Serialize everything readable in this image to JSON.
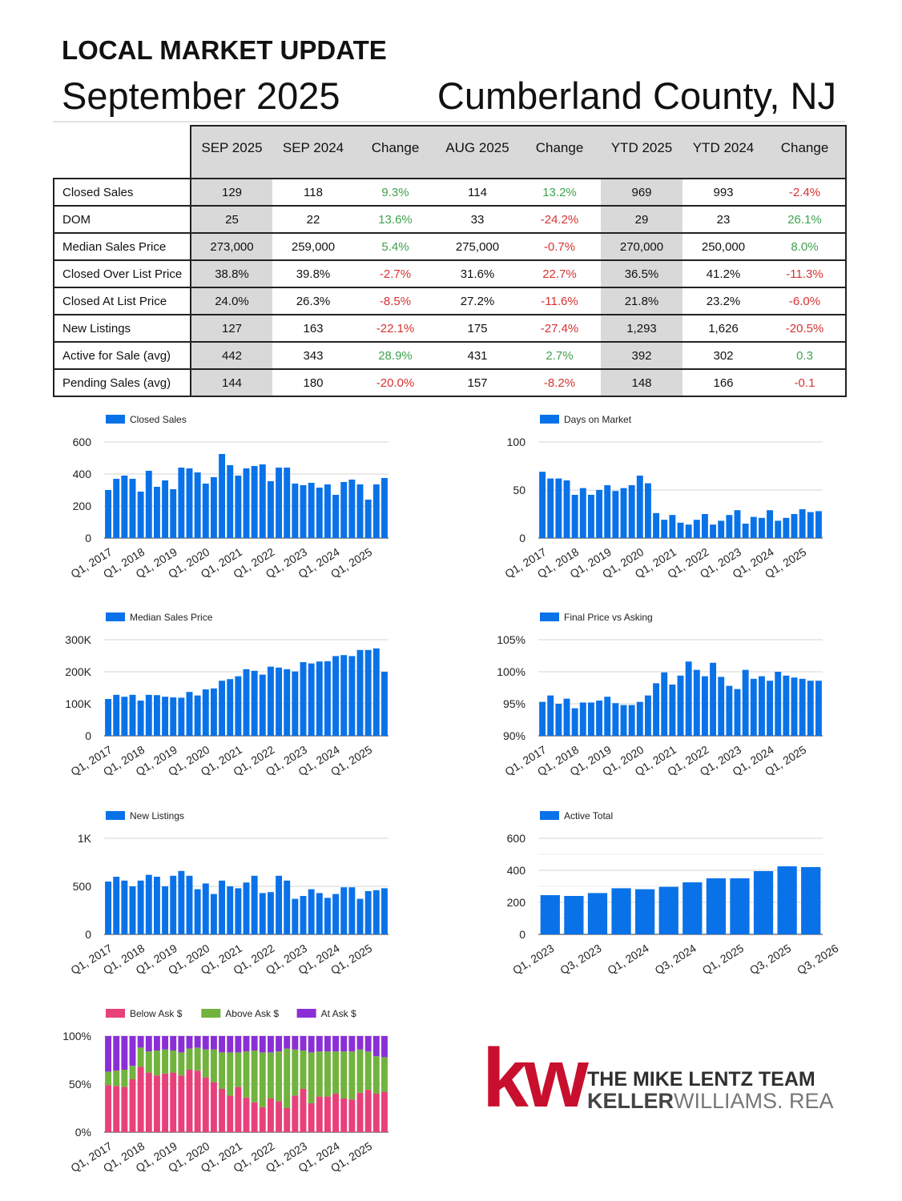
{
  "header": {
    "title": "LOCAL MARKET UPDATE",
    "month": "September 2025",
    "county": "Cumberland County, NJ"
  },
  "table": {
    "columns": [
      "SEP 2025",
      "SEP 2024",
      "Change",
      "AUG 2025",
      "Change",
      "YTD 2025",
      "YTD 2024",
      "Change"
    ],
    "rows": [
      {
        "label": "Closed Sales",
        "values": [
          "129",
          "118",
          "9.3%",
          "114",
          "13.2%",
          "969",
          "993",
          "-2.4%"
        ],
        "change_colors": [
          "pos",
          "pos",
          "neg"
        ]
      },
      {
        "label": "DOM",
        "values": [
          "25",
          "22",
          "13.6%",
          "33",
          "-24.2%",
          "29",
          "23",
          "26.1%"
        ],
        "change_colors": [
          "pos",
          "neg",
          "pos"
        ]
      },
      {
        "label": "Median Sales Price",
        "values": [
          "273,000",
          "259,000",
          "5.4%",
          "275,000",
          "-0.7%",
          "270,000",
          "250,000",
          "8.0%"
        ],
        "change_colors": [
          "pos",
          "neg",
          "pos"
        ]
      },
      {
        "label": "Closed Over List Price",
        "values": [
          "38.8%",
          "39.8%",
          "-2.7%",
          "31.6%",
          "22.7%",
          "36.5%",
          "41.2%",
          "-11.3%"
        ],
        "change_colors": [
          "neg",
          "neg",
          "neg"
        ]
      },
      {
        "label": "Closed At List Price",
        "values": [
          "24.0%",
          "26.3%",
          "-8.5%",
          "27.2%",
          "-11.6%",
          "21.8%",
          "23.2%",
          "-6.0%"
        ],
        "change_colors": [
          "neg",
          "neg",
          "neg"
        ]
      },
      {
        "label": "New Listings",
        "values": [
          "127",
          "163",
          "-22.1%",
          "175",
          "-27.4%",
          "1,293",
          "1,626",
          "-20.5%"
        ],
        "change_colors": [
          "neg",
          "neg",
          "neg"
        ]
      },
      {
        "label": "Active for Sale (avg)",
        "values": [
          "442",
          "343",
          "28.9%",
          "431",
          "2.7%",
          "392",
          "302",
          "0.3"
        ],
        "change_colors": [
          "pos",
          "pos",
          "pos"
        ]
      },
      {
        "label": "Pending Sales (avg)",
        "values": [
          "144",
          "180",
          "-20.0%",
          "157",
          "-8.2%",
          "148",
          "166",
          "-0.1"
        ],
        "change_colors": [
          "neg",
          "neg",
          "neg"
        ]
      }
    ]
  },
  "colors": {
    "bar": "#0a72e8",
    "below_ask": "#e8407a",
    "above_ask": "#71b33d",
    "at_ask": "#8a2fd6",
    "positive": "#3fa34d",
    "negative": "#d83232",
    "kw_red": "#c8102e"
  },
  "chart_data": [
    {
      "id": "closed-sales",
      "type": "bar",
      "series_names": [
        "Closed Sales"
      ],
      "y_ticks": [
        "0",
        "200",
        "400",
        "600"
      ],
      "ylim": [
        0,
        600
      ],
      "x_tick_labels": [
        "Q1, 2017",
        "Q1, 2018",
        "Q1, 2019",
        "Q1, 2020",
        "Q1, 2021",
        "Q1, 2022",
        "Q1, 2023",
        "Q1, 2024",
        "Q1, 2025"
      ],
      "values": [
        300,
        370,
        390,
        370,
        290,
        420,
        320,
        360,
        305,
        440,
        435,
        410,
        340,
        380,
        525,
        455,
        390,
        435,
        450,
        460,
        355,
        440,
        440,
        340,
        330,
        345,
        315,
        335,
        270,
        350,
        365,
        335,
        240,
        335,
        375
      ]
    },
    {
      "id": "days-on-market",
      "type": "bar",
      "series_names": [
        "Days on Market"
      ],
      "y_ticks": [
        "0",
        "50",
        "100"
      ],
      "ylim": [
        0,
        100
      ],
      "x_tick_labels": [
        "Q1, 2017",
        "Q1, 2018",
        "Q1, 2019",
        "Q1, 2020",
        "Q1, 2021",
        "Q1, 2022",
        "Q1, 2023",
        "Q1, 2024",
        "Q1, 2025"
      ],
      "values": [
        69,
        62,
        62,
        60,
        45,
        52,
        45,
        50,
        55,
        49,
        52,
        55,
        65,
        57,
        26,
        19,
        24,
        16,
        14,
        19,
        25,
        14,
        18,
        24,
        29,
        15,
        22,
        21,
        29,
        18,
        21,
        25,
        30,
        27,
        28
      ]
    },
    {
      "id": "median-sales-price",
      "type": "bar",
      "series_names": [
        "Median Sales Price"
      ],
      "y_ticks": [
        "0",
        "100K",
        "200K",
        "300K"
      ],
      "ylim": [
        0,
        300000
      ],
      "x_tick_labels": [
        "Q1, 2017",
        "Q1, 2018",
        "Q1, 2019",
        "Q1, 2020",
        "Q1, 2021",
        "Q1, 2022",
        "Q1, 2023",
        "Q1, 2024",
        "Q1, 2025"
      ],
      "values": [
        115000,
        128000,
        122000,
        128000,
        110000,
        128000,
        127000,
        122000,
        120000,
        119000,
        137000,
        126000,
        145000,
        148000,
        172000,
        177000,
        186000,
        208000,
        203000,
        191000,
        216000,
        213000,
        208000,
        201000,
        230000,
        226000,
        232000,
        233000,
        249000,
        252000,
        249000,
        268000,
        268000,
        273000,
        200000
      ]
    },
    {
      "id": "final-price-vs-asking",
      "type": "bar",
      "series_names": [
        "Final Price vs Asking"
      ],
      "y_ticks": [
        "90%",
        "95%",
        "100%",
        "105%"
      ],
      "ylim": [
        90,
        105
      ],
      "x_tick_labels": [
        "Q1, 2017",
        "Q1, 2018",
        "Q1, 2019",
        "Q1, 2020",
        "Q1, 2021",
        "Q1, 2022",
        "Q1, 2023",
        "Q1, 2024",
        "Q1, 2025"
      ],
      "values": [
        95.3,
        96.3,
        95.0,
        95.8,
        94.3,
        95.2,
        95.2,
        95.5,
        96.1,
        95.1,
        94.8,
        94.8,
        95.3,
        96.3,
        98.2,
        99.9,
        98.0,
        99.4,
        101.6,
        100.3,
        99.3,
        101.4,
        99.2,
        97.8,
        97.3,
        100.3,
        98.9,
        99.3,
        98.6,
        100.0,
        99.4,
        99.1,
        98.9,
        98.6,
        98.6
      ]
    },
    {
      "id": "new-listings",
      "type": "bar",
      "series_names": [
        "New Listings"
      ],
      "y_ticks": [
        "0",
        "500",
        "1K"
      ],
      "ylim": [
        0,
        1000
      ],
      "x_tick_labels": [
        "Q1, 2017",
        "Q1, 2018",
        "Q1, 2019",
        "Q1, 2020",
        "Q1, 2021",
        "Q1, 2022",
        "Q1, 2023",
        "Q1, 2024",
        "Q1, 2025"
      ],
      "values": [
        550,
        600,
        560,
        500,
        560,
        620,
        600,
        500,
        610,
        660,
        610,
        470,
        530,
        420,
        560,
        500,
        480,
        540,
        610,
        430,
        440,
        610,
        560,
        370,
        400,
        470,
        430,
        380,
        420,
        490,
        490,
        370,
        450,
        460,
        480
      ]
    },
    {
      "id": "active-total",
      "type": "bar",
      "series_names": [
        "Active Total"
      ],
      "y_ticks": [
        "0",
        "200",
        "400",
        "600"
      ],
      "ylim": [
        0,
        600
      ],
      "x_tick_labels": [
        "Q1, 2023",
        "Q3, 2023",
        "Q1, 2024",
        "Q3, 2024",
        "Q1, 2025",
        "Q3, 2025",
        "Q3, 2026"
      ],
      "values": [
        245,
        240,
        258,
        288,
        282,
        297,
        325,
        350,
        350,
        395,
        425,
        420
      ]
    },
    {
      "id": "ask-mix",
      "type": "bar",
      "stacked": true,
      "series_names": [
        "Below Ask $",
        "Above Ask $",
        "At Ask $"
      ],
      "y_ticks": [
        "0%",
        "50%",
        "100%"
      ],
      "ylim": [
        0,
        100
      ],
      "x_tick_labels": [
        "Q1, 2017",
        "Q1, 2018",
        "Q1, 2019",
        "Q1, 2020",
        "Q1, 2021",
        "Q1, 2022",
        "Q1, 2023",
        "Q1, 2024",
        "Q1, 2025"
      ],
      "series": [
        {
          "name": "Below Ask $",
          "values": [
            49,
            48,
            47,
            55,
            68,
            62,
            59,
            61,
            62,
            59,
            65,
            64,
            57,
            52,
            45,
            38,
            47,
            36,
            31,
            26,
            35,
            32,
            25,
            38,
            45,
            30,
            37,
            37,
            40,
            35,
            34,
            41,
            44,
            40,
            42
          ]
        },
        {
          "name": "Above Ask $",
          "values": [
            14,
            16,
            18,
            14,
            20,
            22,
            26,
            25,
            23,
            24,
            22,
            24,
            29,
            34,
            38,
            45,
            36,
            48,
            54,
            57,
            48,
            52,
            62,
            48,
            40,
            53,
            47,
            47,
            44,
            49,
            50,
            45,
            40,
            39,
            36
          ]
        },
        {
          "name": "At Ask $",
          "values": [
            37,
            36,
            35,
            31,
            12,
            16,
            15,
            14,
            15,
            17,
            13,
            12,
            14,
            14,
            17,
            17,
            17,
            16,
            15,
            17,
            17,
            16,
            13,
            14,
            15,
            17,
            16,
            16,
            16,
            16,
            16,
            14,
            16,
            21,
            22
          ]
        }
      ]
    }
  ],
  "logo": {
    "kw_letters": "kw",
    "team": "THE MIKE LENTZ TEAM",
    "brand_bold": "KELLER",
    "brand_light": "WILLIAMS. REALTY"
  }
}
